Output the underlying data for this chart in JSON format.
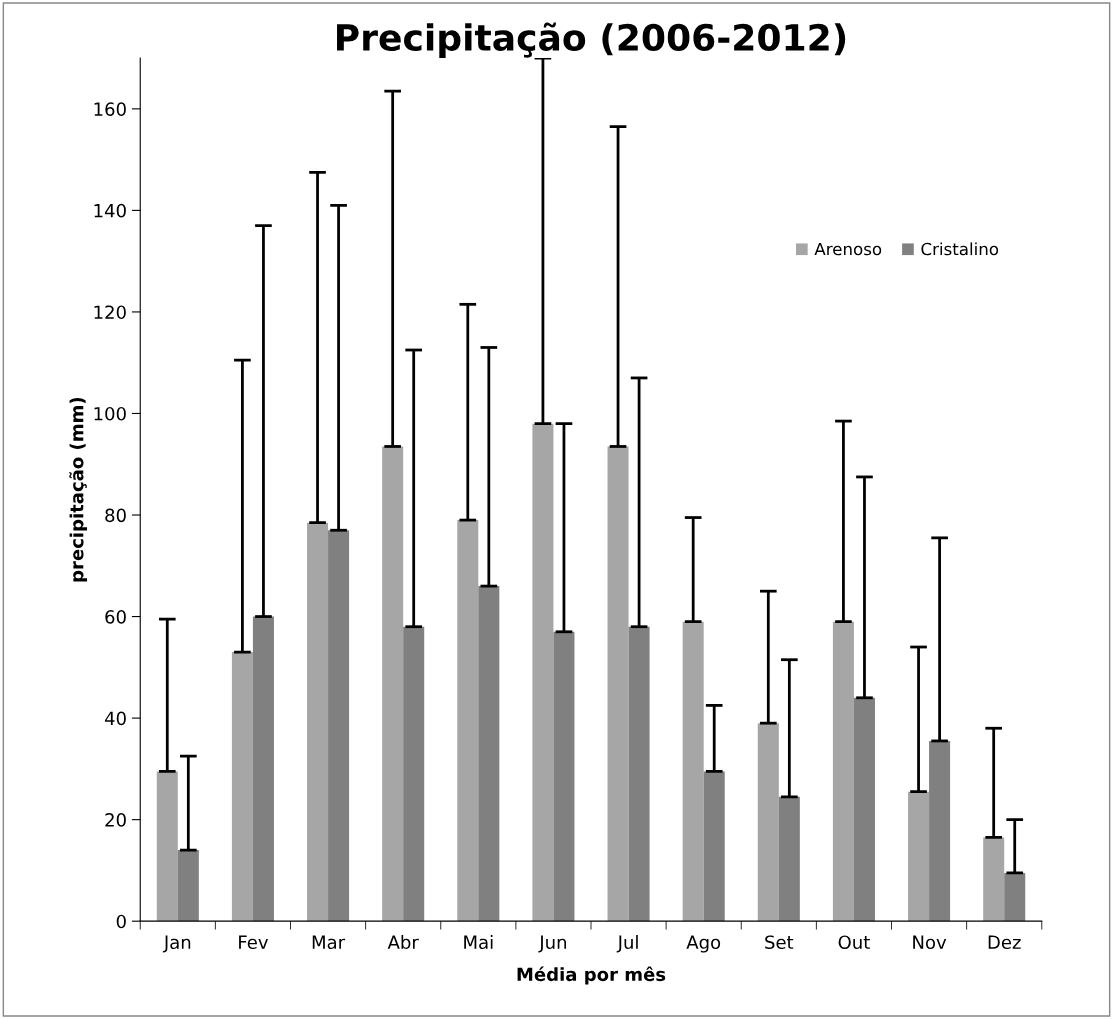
{
  "chart_data": {
    "type": "bar",
    "title": "Precipitação (2006-2012)",
    "xlabel": "Média por mês",
    "ylabel": "precipitação (mm)",
    "categories": [
      "Jan",
      "Fev",
      "Mar",
      "Abr",
      "Mai",
      "Jun",
      "Jul",
      "Ago",
      "Set",
      "Out",
      "Nov",
      "Dez"
    ],
    "series": [
      {
        "name": "Arenoso",
        "color": "#a6a6a6",
        "values": [
          29.5,
          53,
          78.5,
          93.5,
          79,
          98,
          93.5,
          59,
          39,
          59,
          25.5,
          16.5
        ],
        "errors": [
          [
            29.5,
            59.5
          ],
          [
            53,
            110.5
          ],
          [
            78.5,
            147.5
          ],
          [
            93.5,
            163.5
          ],
          [
            79,
            121.5
          ],
          [
            98,
            170
          ],
          [
            93.5,
            156.5
          ],
          [
            59,
            79.5
          ],
          [
            39,
            65
          ],
          [
            59,
            98.5
          ],
          [
            25.5,
            54
          ],
          [
            16.5,
            38
          ]
        ]
      },
      {
        "name": "Cristalino",
        "color": "#808080",
        "values": [
          14,
          60,
          77,
          58,
          66,
          57,
          58,
          29.5,
          24.5,
          44,
          35.5,
          9.5
        ],
        "errors": [
          [
            14,
            32.5
          ],
          [
            60,
            137
          ],
          [
            77,
            141
          ],
          [
            58,
            112.5
          ],
          [
            66,
            113
          ],
          [
            57,
            98
          ],
          [
            58,
            107
          ],
          [
            29.5,
            42.5
          ],
          [
            24.5,
            51.5
          ],
          [
            44,
            87.5
          ],
          [
            35.5,
            75.5
          ],
          [
            9.5,
            20
          ]
        ]
      }
    ],
    "ylim": [
      0,
      170
    ],
    "yticks": [
      0,
      20,
      40,
      60,
      80,
      100,
      120,
      140,
      160
    ],
    "grid": false,
    "legend": "top right"
  }
}
